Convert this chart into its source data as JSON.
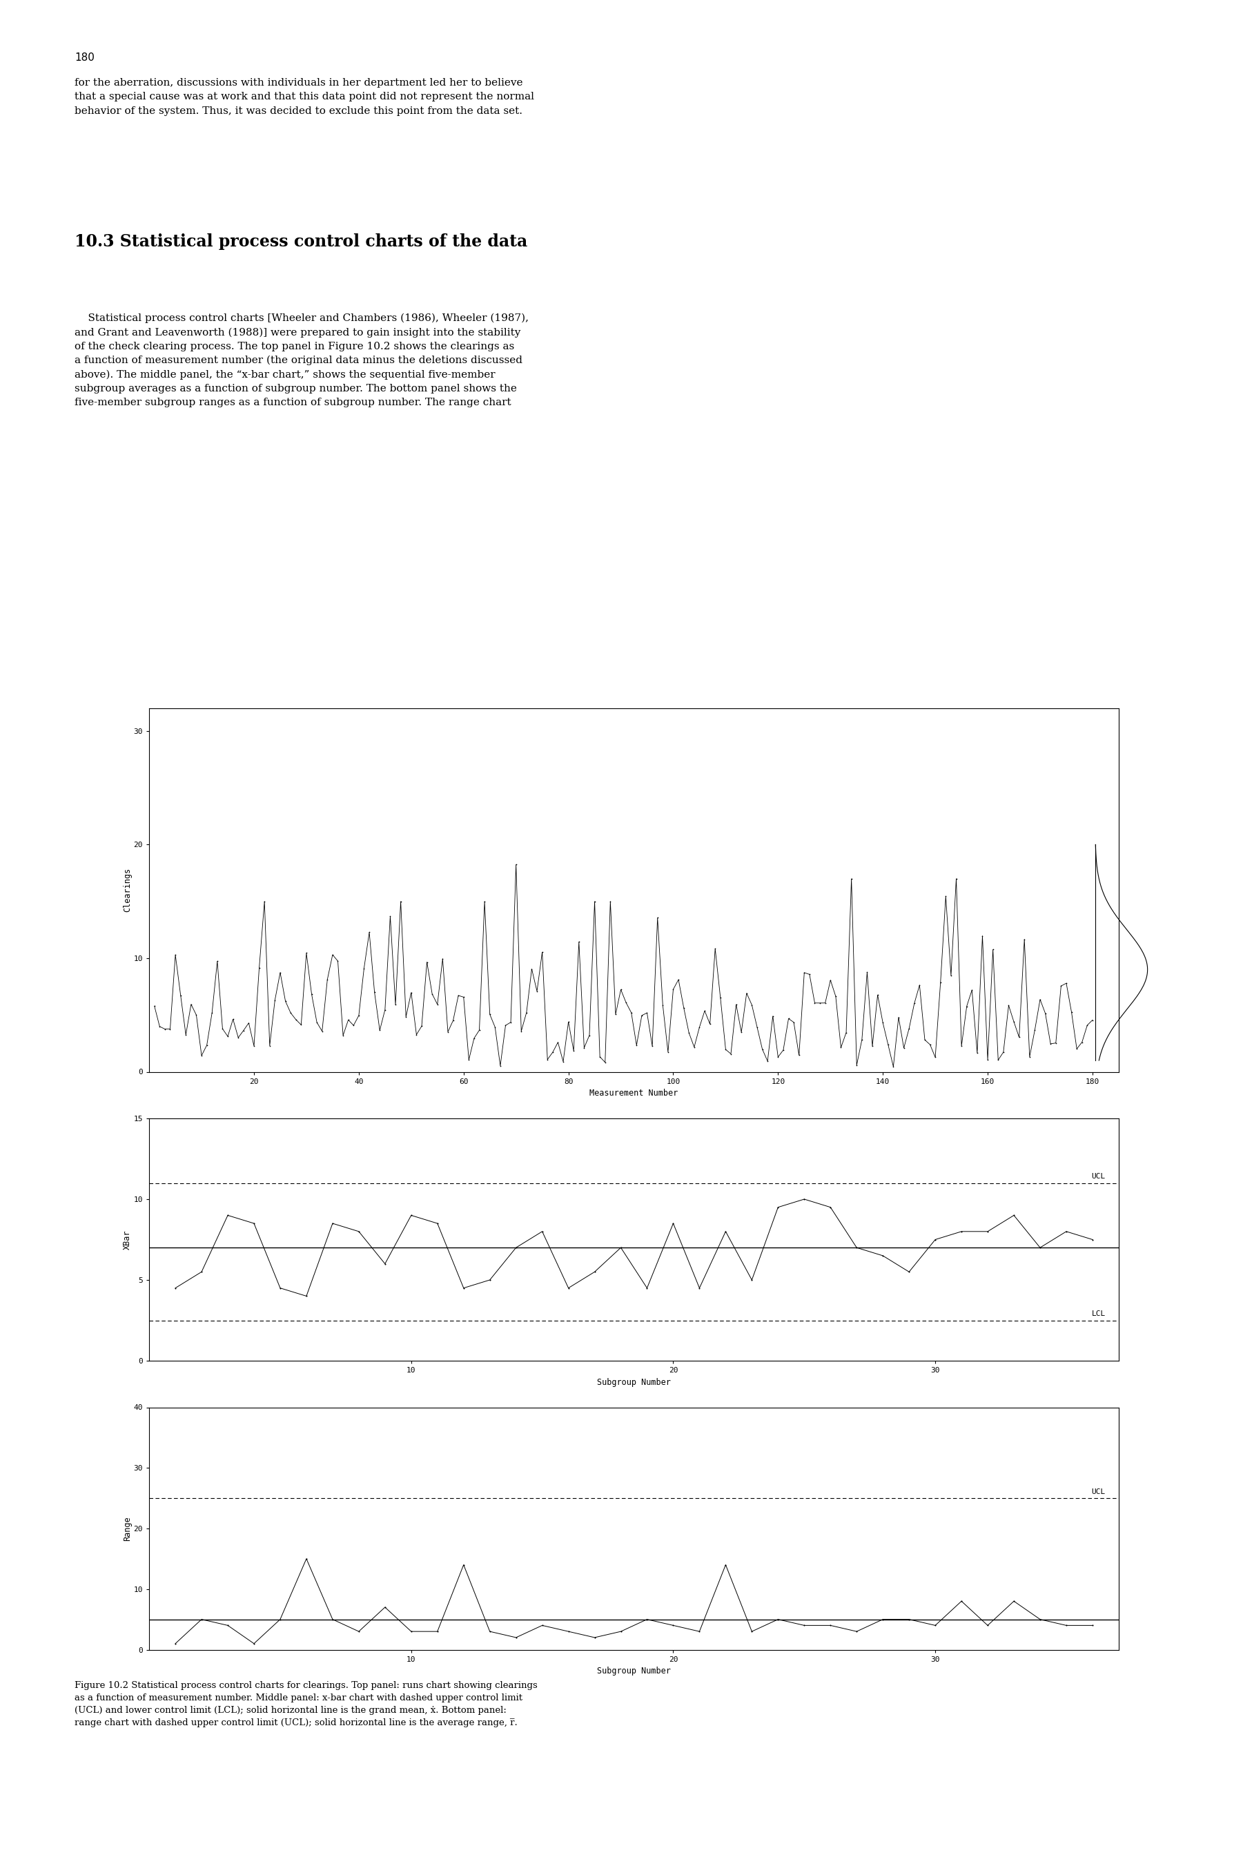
{
  "page_number": "180",
  "top_text": "for the aberration, discussions with individuals in her department led her to believe\nthat a special cause was at work and that this data point did not represent the normal\nbehavior of the system. Thus, it was decided to exclude this point from the data set.",
  "section_title": "10.3 Statistical process control charts of the data",
  "body_text": "    Statistical process control charts [Wheeler and Chambers (1986), Wheeler (1987),\nand Grant and Leavenworth (1988)] were prepared to gain insight into the stability\nof the check clearing process. The top panel in Figure 10.2 shows the clearings as\na function of measurement number (the original data minus the deletions discussed\nabove). The middle panel, the “x-bar chart,” shows the sequential five-member\nsubgroup averages as a function of subgroup number. The bottom panel shows the\nfive-member subgroup ranges as a function of subgroup number. The range chart",
  "top_panel": {
    "xlabel": "Measurement Number",
    "ylabel": "Clearings",
    "xlim": [
      0,
      185
    ],
    "ylim": [
      0,
      32
    ],
    "xticks": [
      20,
      40,
      60,
      80,
      100,
      120,
      140,
      160,
      180
    ],
    "yticks": [
      0,
      10,
      20,
      30
    ]
  },
  "middle_panel": {
    "xlabel": "Subgroup Number",
    "ylabel": "XBar",
    "xlim": [
      0,
      37
    ],
    "ylim": [
      0,
      15
    ],
    "xticks": [
      10,
      20,
      30
    ],
    "yticks": [
      0,
      5,
      10,
      15
    ],
    "UCL": 11.0,
    "LCL": 2.5,
    "grand_mean": 7.0,
    "UCL_label": "UCL",
    "LCL_label": "LCL"
  },
  "bottom_panel": {
    "xlabel": "Subgroup Number",
    "ylabel": "Range",
    "xlim": [
      0,
      37
    ],
    "ylim": [
      0,
      40
    ],
    "xticks": [
      10,
      20,
      30
    ],
    "yticks": [
      0,
      10,
      20,
      30,
      40
    ],
    "UCL": 25.0,
    "avg_range": 5.0,
    "UCL_label": "UCL"
  },
  "figure_caption": "Figure 10.2 Statistical process control charts for clearings. Top panel: runs chart showing clearings\nas a function of measurement number. Middle panel: x-bar chart with dashed upper control limit\n(UCL) and lower control limit (LCL); solid horizontal line is the grand mean, ẋ. Bottom panel:\nrange chart with dashed upper control limit (UCL); solid horizontal line is the average range, r̅."
}
